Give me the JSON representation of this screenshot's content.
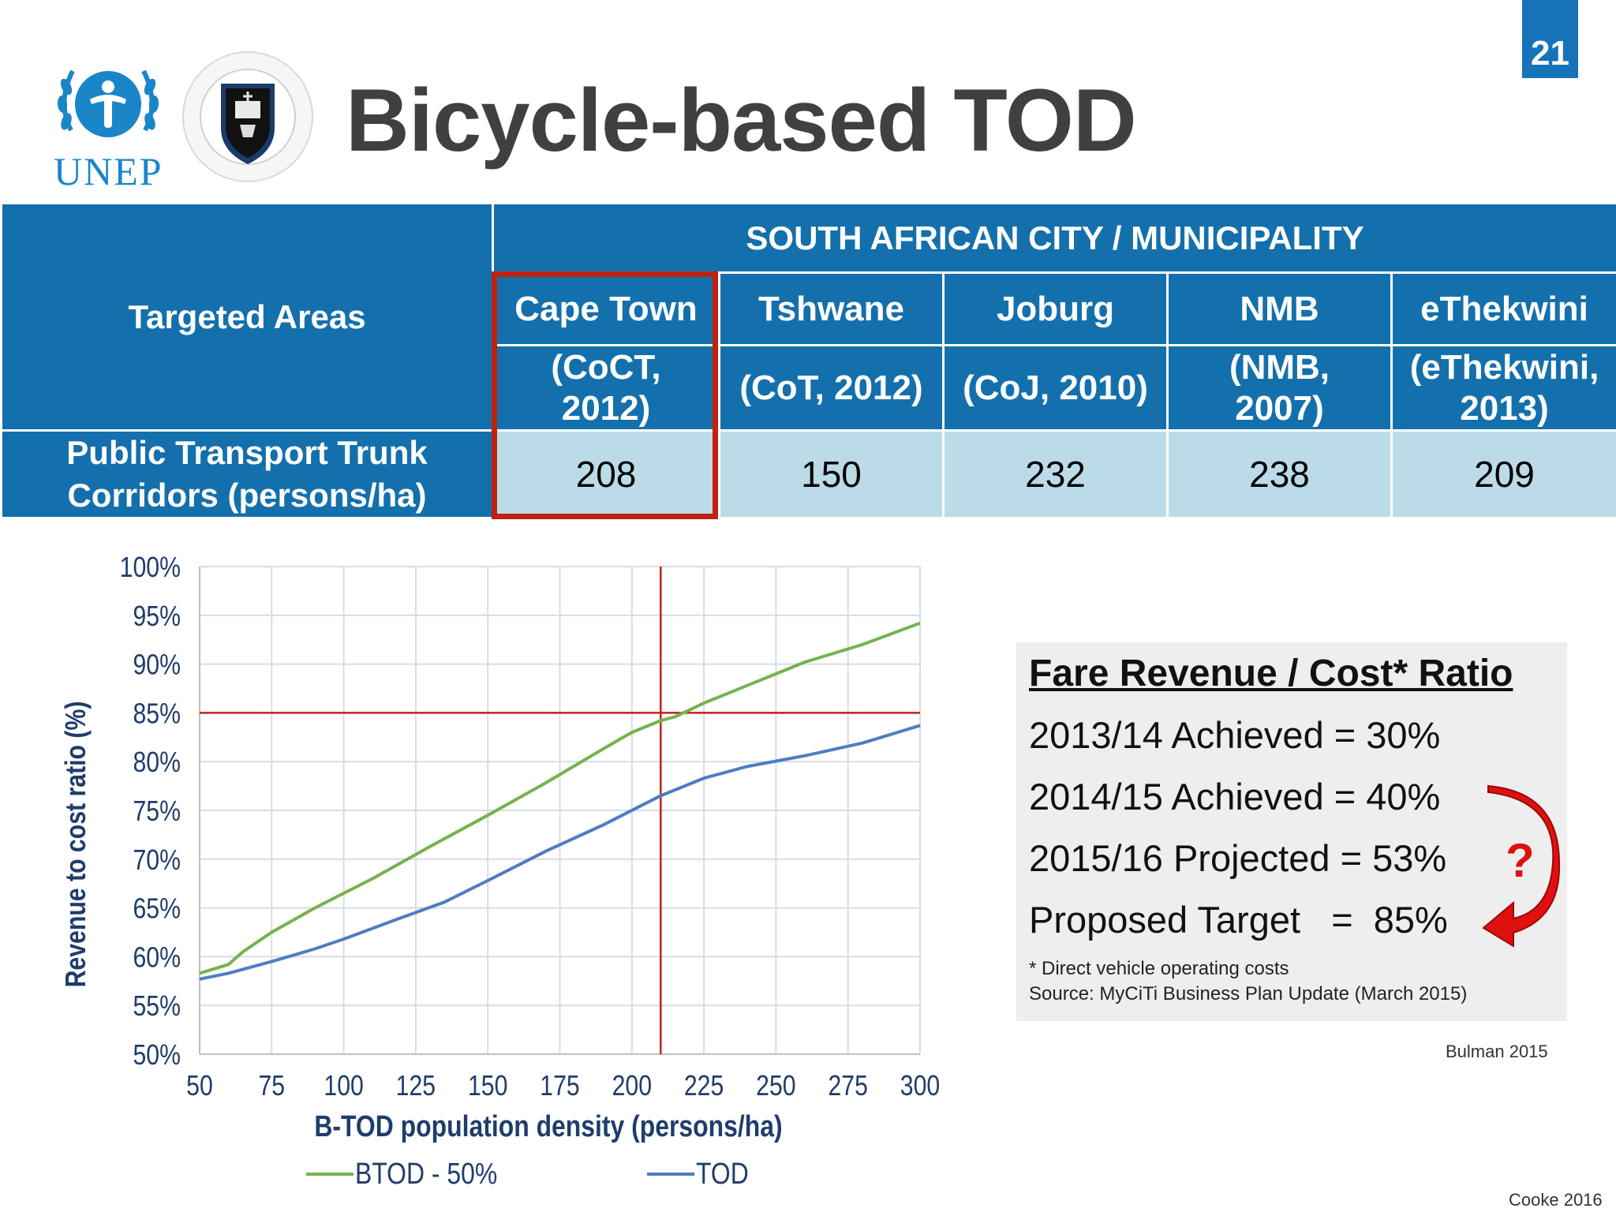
{
  "slide": {
    "number": "21",
    "title": "Bicycle-based TOD",
    "logos": {
      "unep_text": "UNEP",
      "uct_seal": "University of Cape Town · iYunivesithi yaseKapa · Universiteit van Kaapstad"
    }
  },
  "table": {
    "corner_label": "Targeted Areas",
    "group_header": "SOUTH AFRICAN CITY / MUNICIPALITY",
    "cities": [
      {
        "name": "Cape Town",
        "source": "(CoCT, 2012)",
        "value": "208"
      },
      {
        "name": "Tshwane",
        "source": "(CoT, 2012)",
        "value": "150"
      },
      {
        "name": "Joburg",
        "source": "(CoJ, 2010)",
        "value": "232"
      },
      {
        "name": "NMB",
        "source": "(NMB, 2007)",
        "value": "238"
      },
      {
        "name": "eThekwini",
        "source": "(eThekwini, 2013)",
        "value": "209"
      }
    ],
    "row_label": "Public Transport Trunk Corridors (persons/ha)"
  },
  "chart_data": {
    "type": "line",
    "title": "",
    "xlabel": "B-TOD population density (persons/ha)",
    "ylabel": "Revenue to cost ratio (%)",
    "xlim": [
      50,
      300
    ],
    "ylim": [
      50,
      100
    ],
    "x_ticks": [
      "50",
      "75",
      "100",
      "125",
      "150",
      "175",
      "200",
      "225",
      "250",
      "275",
      "300"
    ],
    "y_ticks": [
      "50%",
      "55%",
      "60%",
      "65%",
      "70%",
      "75%",
      "80%",
      "85%",
      "90%",
      "95%",
      "100%"
    ],
    "grid": true,
    "legend_position": "bottom",
    "series": [
      {
        "name": "BTOD - 50%",
        "color": "#77b24d",
        "x": [
          50,
          60,
          65,
          75,
          90,
          110,
          130,
          150,
          170,
          190,
          200,
          210,
          215,
          225,
          240,
          260,
          280,
          300
        ],
        "y": [
          58.3,
          59.2,
          60.5,
          62.5,
          65.0,
          68.0,
          71.3,
          74.5,
          77.8,
          81.3,
          83.0,
          84.2,
          84.6,
          86.0,
          87.8,
          90.2,
          92.0,
          94.2
        ]
      },
      {
        "name": "TOD",
        "color": "#4f7cc3",
        "x": [
          50,
          60,
          75,
          90,
          100,
          120,
          135,
          150,
          170,
          190,
          210,
          225,
          240,
          260,
          280,
          300
        ],
        "y": [
          57.7,
          58.3,
          59.5,
          60.8,
          61.8,
          64.0,
          65.6,
          67.8,
          70.8,
          73.5,
          76.5,
          78.3,
          79.5,
          80.6,
          81.9,
          83.7
        ]
      }
    ],
    "reference_lines": {
      "x": 210,
      "y": 85,
      "color": "#c0221b"
    }
  },
  "fare_box": {
    "title": "Fare Revenue / Cost* Ratio",
    "lines": [
      "2013/14 Achieved = 30%",
      "2014/15 Achieved = 40%",
      "2015/16 Projected = 53%",
      "Proposed Target   =  85%"
    ],
    "question_mark": "?",
    "footnote": "* Direct vehicle operating costs",
    "source": "Source: MyCiTi Business Plan Update (March 2015)"
  },
  "credits": {
    "chart_credit": "Bulman 2015",
    "slide_credit": "Cooke 2016"
  },
  "colors": {
    "header_blue": "#1470ac",
    "cell_blue": "#bcdbe8",
    "highlight_red": "#c0220f"
  }
}
